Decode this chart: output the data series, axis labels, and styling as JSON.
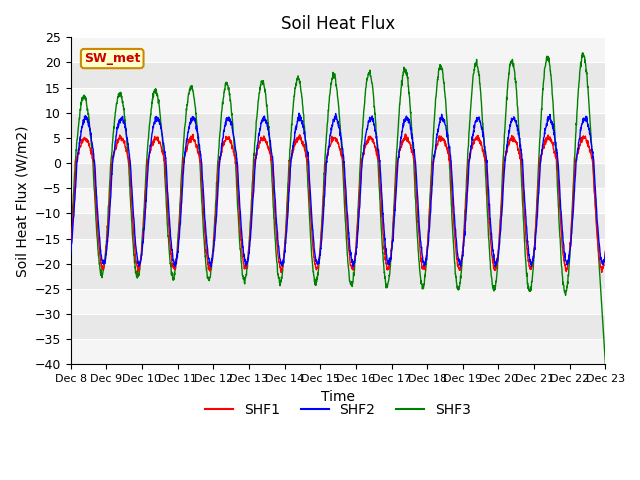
{
  "title": "Soil Heat Flux",
  "ylabel": "Soil Heat Flux (W/m2)",
  "xlabel": "Time",
  "ylim": [
    -40,
    25
  ],
  "yticks": [
    -40,
    -35,
    -30,
    -25,
    -20,
    -15,
    -10,
    -5,
    0,
    5,
    10,
    15,
    20,
    25
  ],
  "xlim": [
    0,
    15
  ],
  "xtick_labels": [
    "Dec 8",
    "Dec 9",
    "Dec 10",
    "Dec 11",
    "Dec 12",
    "Dec 13",
    "Dec 14",
    "Dec 15",
    "Dec 16",
    "Dec 17",
    "Dec 18",
    "Dec 19",
    "Dec 20",
    "Dec 21",
    "Dec 22",
    "Dec 23"
  ],
  "legend_entries": [
    "SHF1",
    "SHF2",
    "SHF3"
  ],
  "line_colors": [
    "red",
    "blue",
    "green"
  ],
  "sw_met_label": "SW_met",
  "sw_met_box_color": "#ffffcc",
  "sw_met_border_color": "#cc8800",
  "sw_met_text_color": "#cc0000",
  "bg_color": "#e8e8e8",
  "n_points": 2160,
  "period_days": 1.0
}
